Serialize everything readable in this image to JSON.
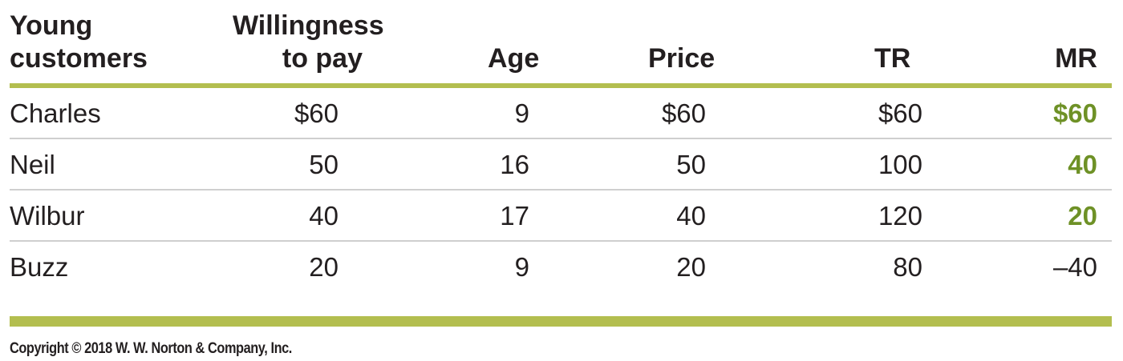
{
  "table": {
    "headers": {
      "customers_line1": "Young",
      "customers_line2": "customers",
      "wtp_line1": "Willingness",
      "wtp_line2": "to pay",
      "age": "Age",
      "price": "Price",
      "tr": "TR",
      "mr": "MR"
    },
    "rows": [
      {
        "name": "Charles",
        "wtp": "$60",
        "age": "9",
        "price": "$60",
        "tr": "$60",
        "mr": "$60"
      },
      {
        "name": "Neil",
        "wtp": "50",
        "age": "16",
        "price": "50",
        "tr": "100",
        "mr": "40"
      },
      {
        "name": "Wilbur",
        "wtp": "40",
        "age": "17",
        "price": "40",
        "tr": "120",
        "mr": "20"
      },
      {
        "name": "Buzz",
        "wtp": "20",
        "age": "9",
        "price": "20",
        "tr": "80",
        "mr": "–40"
      }
    ]
  },
  "footer": {
    "copyright": "Copyright © 2018 W. W. Norton & Company, Inc."
  },
  "colors": {
    "accent_rule": "#b3be4f",
    "positive_mr": "#6e9126"
  }
}
